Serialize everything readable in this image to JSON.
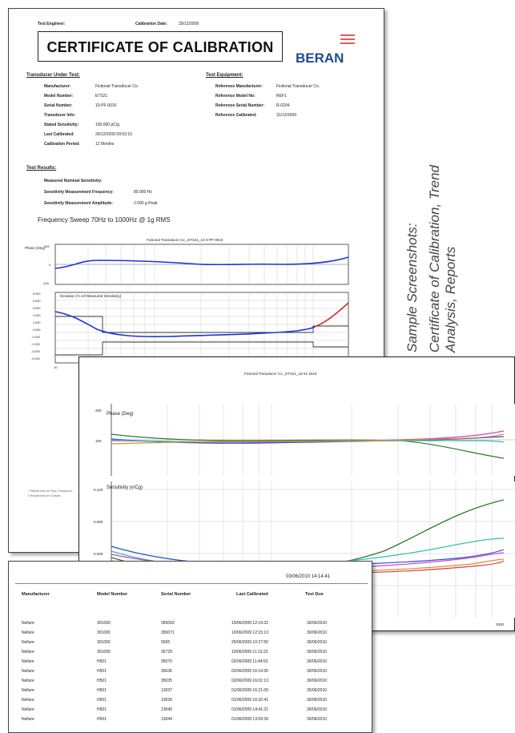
{
  "caption": {
    "line1": "Sample Screenshots:",
    "line2a": "Certificate of Calibration, Trend",
    "line2b": "Analysis, Reports"
  },
  "certificate": {
    "test_engineer_label": "Test Engineer:",
    "calibration_date_label": "Calibration Date:",
    "calibration_date": "29/12/2009",
    "title": "CERTIFICATE OF CALIBRATION",
    "brand": "BERAN",
    "brand_color": "#1f4b8f",
    "logo_accent_color": "#e45a5a",
    "tut_heading": "Transducer Under Test:",
    "tut_rows": [
      {
        "label": "Manufacturer:",
        "value": "Fictional Transducer Co."
      },
      {
        "label": "Model Number:",
        "value": "ETS21"
      },
      {
        "label": "Serial Number:",
        "value": "10-PF-0010"
      },
      {
        "label": "Transducer Info:",
        "value": ""
      },
      {
        "label": "Stated Sensitivity:",
        "value": "100.000 pC/g"
      },
      {
        "label": "Last Calibrated:",
        "value": "29/12/2009 09:53:10"
      },
      {
        "label": "Calibration Period:",
        "value": "12 Months"
      }
    ],
    "te_heading": "Test Equipment:",
    "te_rows": [
      {
        "label": "Reference Manufacturer:",
        "value": "Fictional Transducer Co."
      },
      {
        "label": "Reference Model No:",
        "value": "REF1"
      },
      {
        "label": "Reference Serial Number:",
        "value": "R-0204"
      },
      {
        "label": "Reference Calibrated:",
        "value": "31/12/2009"
      }
    ],
    "results_heading": "Test Results:",
    "results_rows": [
      {
        "label": "Measured Nominal Sensitivity:",
        "value": ""
      },
      {
        "label": "Sensitivity Measurement Frequency:",
        "value": "80.000 Hz"
      },
      {
        "label": "Sensitivity Measurement Amplitude:",
        "value": "2.000 g Peak"
      }
    ],
    "sweep_title": "Frequency Sweep 70Hz to 1000Hz @ 1g RMS",
    "chart_title": "Fictional Transducer Co._ETS21_10-4-PF-0010",
    "phase_label": "Phase (Deg)",
    "deviation_label": "Deviation (% ref Measured Sensitivity)",
    "footnote1": "* Results that are Pass: Transducer...",
    "footnote2": "# Results that are Outside..."
  },
  "trend": {
    "title": "Fictional Transducer Co._ETS21_10-41-2010",
    "phase_label": "Phase (Deg)",
    "sens_label": "Sensitivity (v/Cg)",
    "x_end_label": "1000"
  },
  "report": {
    "timestamp": "03/06/2010 14:14:41",
    "columns": [
      "Manufacturer",
      "Model Number",
      "Serial Number",
      "Last Calibrated",
      "Test Due"
    ],
    "rows": [
      [
        "Nellure",
        "301000",
        "355060",
        "10/06/2009 12:14:22",
        "30/06/2010"
      ],
      [
        "Nellure",
        "301000",
        "355071",
        "10/06/2009 12:15:13",
        "30/06/2010"
      ],
      [
        "Nellure",
        "301000",
        "5505",
        "25/06/2009 10:27:50",
        "30/06/2010"
      ],
      [
        "Nellure",
        "301000",
        "35729",
        "10/06/2009 11:13:23",
        "30/06/2010"
      ],
      [
        "Nellure",
        "H501",
        "35070",
        "02/06/2009 11:44:53",
        "30/06/2010"
      ],
      [
        "Nellure",
        "H501",
        "35036",
        "02/06/2009 16:14:30",
        "30/06/2010"
      ],
      [
        "Nellure",
        "H501",
        "35035",
        "02/06/2009 16:01:13",
        "30/06/2010"
      ],
      [
        "Nellure",
        "H501",
        "13037",
        "01/06/2009 16:21:09",
        "30/06/2010"
      ],
      [
        "Nellure",
        "H501",
        "13039",
        "01/06/2009 16:32:41",
        "30/06/2010"
      ],
      [
        "Nellure",
        "H501",
        "13040",
        "01/06/2009 14:41:21",
        "30/06/2010"
      ],
      [
        "Nellure",
        "H501",
        "13044",
        "01/06/2009 13:09:39",
        "30/06/2010"
      ]
    ]
  }
}
